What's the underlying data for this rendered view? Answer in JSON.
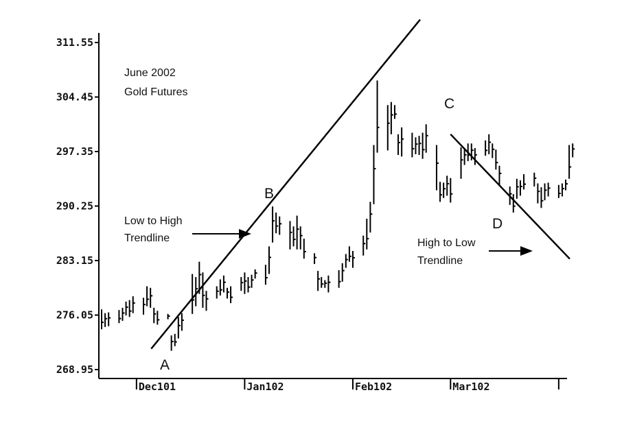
{
  "chart_data": {
    "type": "line",
    "title": "June 2002 Gold Futures",
    "title_lines": [
      "June 2002",
      "Gold Futures"
    ],
    "ylim": [
      268.95,
      311.55
    ],
    "yticks": [
      "311.55",
      "304.45",
      "297.35",
      "290.25",
      "283.15",
      "276.05",
      "268.95"
    ],
    "xticks": [
      "Dec101",
      "Jan102",
      "Feb102",
      "Mar102"
    ],
    "points": {
      "A": {
        "label": "A",
        "x": "2001-12-06",
        "y": 272.1
      },
      "B": {
        "label": "B",
        "x": "2002-01-07",
        "y": 289.9
      },
      "C": {
        "label": "C",
        "x": "2002-03-01",
        "y": 299.6
      },
      "D": {
        "label": "D",
        "x": "2002-03-21",
        "y": 290.1
      }
    },
    "series": [
      {
        "name": "Low to High Trendline",
        "from": "A",
        "to": "B",
        "extend": true
      },
      {
        "name": "High to Low Trendline",
        "from": "C",
        "to": "D",
        "extend": true
      }
    ],
    "annotations": [
      {
        "lines": [
          "Low to High",
          "Trendline"
        ],
        "arrow": "right"
      },
      {
        "lines": [
          "High to Low",
          "Trendline"
        ],
        "arrow": "right"
      }
    ],
    "bars": [
      [
        276.8,
        274.2
      ],
      [
        276.3,
        274.5
      ],
      [
        276.4,
        274.6
      ],
      [
        276.7,
        275.0
      ],
      [
        277.0,
        275.3
      ],
      [
        277.8,
        276.0
      ],
      [
        278.0,
        275.8
      ],
      [
        278.5,
        276.3
      ],
      [
        278.3,
        276.1
      ],
      [
        279.8,
        277.2
      ],
      [
        279.6,
        277.0
      ],
      [
        277.0,
        275.0
      ],
      [
        276.6,
        274.8
      ],
      [
        276.2,
        275.5
      ],
      [
        273.4,
        271.4
      ],
      [
        273.6,
        272.0
      ],
      [
        275.8,
        273.0
      ],
      [
        276.3,
        274.0
      ],
      [
        281.4,
        276.2
      ],
      [
        281.0,
        277.2
      ],
      [
        283.0,
        278.8
      ],
      [
        281.6,
        277.0
      ],
      [
        279.2,
        276.6
      ],
      [
        279.8,
        278.2
      ],
      [
        280.7,
        278.6
      ],
      [
        281.2,
        279.0
      ],
      [
        279.6,
        278.2
      ],
      [
        279.8,
        277.6
      ],
      [
        281.0,
        279.2
      ],
      [
        281.6,
        278.8
      ],
      [
        281.0,
        279.0
      ],
      [
        281.3,
        279.6
      ],
      [
        282.0,
        280.8
      ],
      [
        282.6,
        280.0
      ],
      [
        285.0,
        281.4
      ],
      [
        290.2,
        285.5
      ],
      [
        289.4,
        286.7
      ],
      [
        288.9,
        286.5
      ],
      [
        288.3,
        284.6
      ],
      [
        287.6,
        285.0
      ],
      [
        289.0,
        284.6
      ],
      [
        287.6,
        284.6
      ],
      [
        286.0,
        283.4
      ],
      [
        284.1,
        282.7
      ],
      [
        281.8,
        279.2
      ],
      [
        281.0,
        279.6
      ],
      [
        280.6,
        279.6
      ],
      [
        281.2,
        279.0
      ],
      [
        281.9,
        279.6
      ],
      [
        282.8,
        280.4
      ],
      [
        284.0,
        282.2
      ],
      [
        285.0,
        283.0
      ],
      [
        284.4,
        282.2
      ],
      [
        286.4,
        283.8
      ],
      [
        288.6,
        284.6
      ],
      [
        290.8,
        286.8
      ],
      [
        298.2,
        290.5
      ],
      [
        306.6,
        297.2
      ],
      [
        303.4,
        297.5
      ],
      [
        303.8,
        299.6
      ],
      [
        303.4,
        301.6
      ],
      [
        299.6,
        296.9
      ],
      [
        300.5,
        296.7
      ],
      [
        299.8,
        296.6
      ],
      [
        299.2,
        297.0
      ],
      [
        299.4,
        296.9
      ],
      [
        299.8,
        296.4
      ],
      [
        300.9,
        297.2
      ],
      [
        298.2,
        292.3
      ],
      [
        293.4,
        290.8
      ],
      [
        293.3,
        291.3
      ],
      [
        294.2,
        291.6
      ],
      [
        293.9,
        290.7
      ],
      [
        297.9,
        293.8
      ],
      [
        297.8,
        295.6
      ],
      [
        298.4,
        296.1
      ],
      [
        298.4,
        296.2
      ],
      [
        297.8,
        295.6
      ],
      [
        298.8,
        296.8
      ],
      [
        299.6,
        297.0
      ],
      [
        298.4,
        296.5
      ],
      [
        297.6,
        295.0
      ],
      [
        295.5,
        293.0
      ],
      [
        292.8,
        290.4
      ],
      [
        291.8,
        289.4
      ],
      [
        293.8,
        291.2
      ],
      [
        293.6,
        291.6
      ],
      [
        294.4,
        292.4
      ],
      [
        294.6,
        292.8
      ],
      [
        293.2,
        290.6
      ],
      [
        292.7,
        290.0
      ],
      [
        293.2,
        291.0
      ],
      [
        293.3,
        291.5
      ],
      [
        293.0,
        291.3
      ],
      [
        293.2,
        291.5
      ],
      [
        293.7,
        292.3
      ],
      [
        298.2,
        293.8
      ],
      [
        298.4,
        296.6
      ]
    ]
  }
}
